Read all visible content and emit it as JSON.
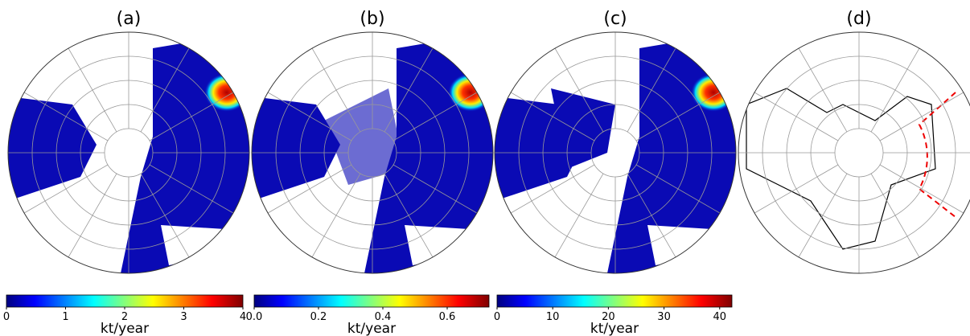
{
  "panels": [
    {
      "label": "(a)",
      "colorbar": {
        "range": [
          0,
          4
        ],
        "ticks": [
          0,
          1,
          2,
          3,
          4
        ],
        "unit": "kt/year"
      }
    },
    {
      "label": "(b)",
      "colorbar": {
        "range": [
          0,
          0.73
        ],
        "ticks": [
          {
            "value": 0,
            "label": "0.0"
          },
          0.2,
          0.4,
          0.6
        ],
        "unit": "kt/year"
      }
    },
    {
      "label": "(c)",
      "colorbar": {
        "range": [
          0,
          42.2
        ],
        "ticks": [
          0,
          10,
          20,
          30,
          40
        ],
        "unit": "kt/year"
      }
    },
    {
      "label": "(d)"
    }
  ]
}
